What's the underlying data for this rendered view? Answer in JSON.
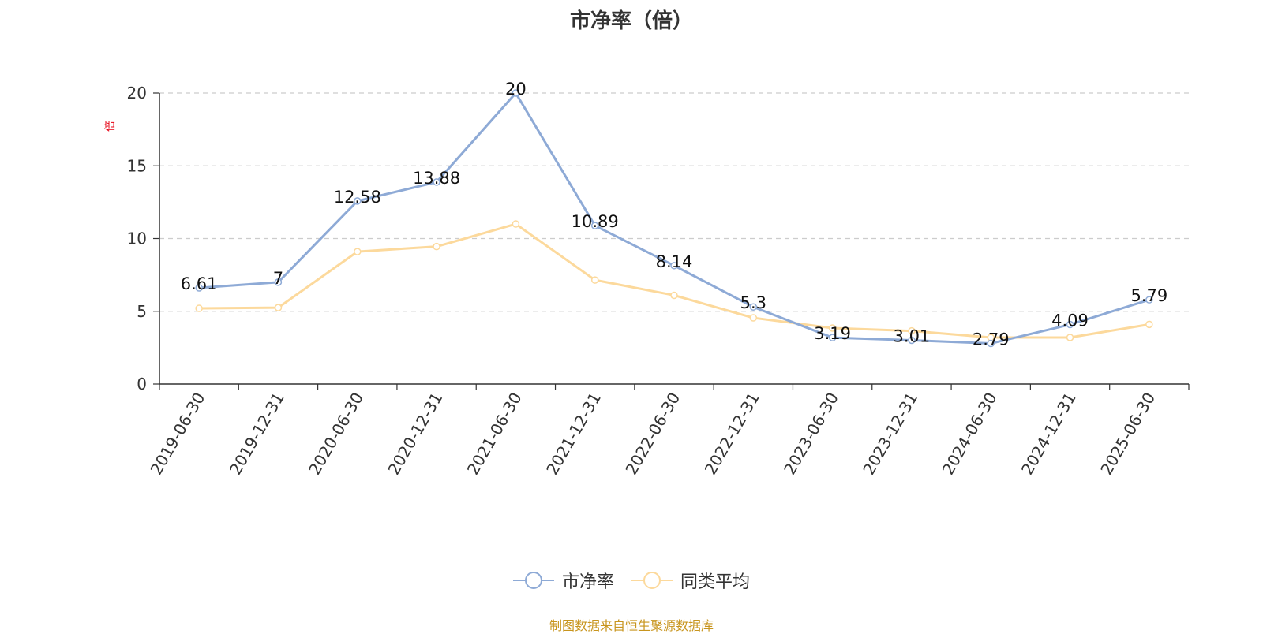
{
  "chart_data": {
    "type": "line",
    "title": "市净率（倍）",
    "ylabel": "倍",
    "categories": [
      "2019-06-30",
      "2019-12-31",
      "2020-06-30",
      "2020-12-31",
      "2021-06-30",
      "2021-12-31",
      "2022-06-30",
      "2022-12-31",
      "2023-06-30",
      "2023-12-31",
      "2024-06-30",
      "2024-12-31",
      "2025-06-30"
    ],
    "series": [
      {
        "name": "市净率",
        "color": "#8eaad6",
        "labels": true,
        "values": [
          6.61,
          7,
          12.58,
          13.88,
          20,
          10.89,
          8.14,
          5.3,
          3.19,
          3.01,
          2.79,
          4.09,
          5.79
        ]
      },
      {
        "name": "同类平均",
        "color": "#fcd99c",
        "labels": false,
        "values": [
          5.2,
          5.25,
          9.1,
          9.45,
          11.0,
          7.15,
          6.1,
          4.55,
          3.85,
          3.65,
          3.2,
          3.2,
          4.1
        ]
      }
    ],
    "ylim": [
      0,
      20
    ],
    "yticks": [
      0,
      5,
      10,
      15,
      20
    ],
    "grid": true,
    "legend": "bottom-center"
  },
  "footer": {
    "source": "制图数据来自恒生聚源数据库"
  }
}
